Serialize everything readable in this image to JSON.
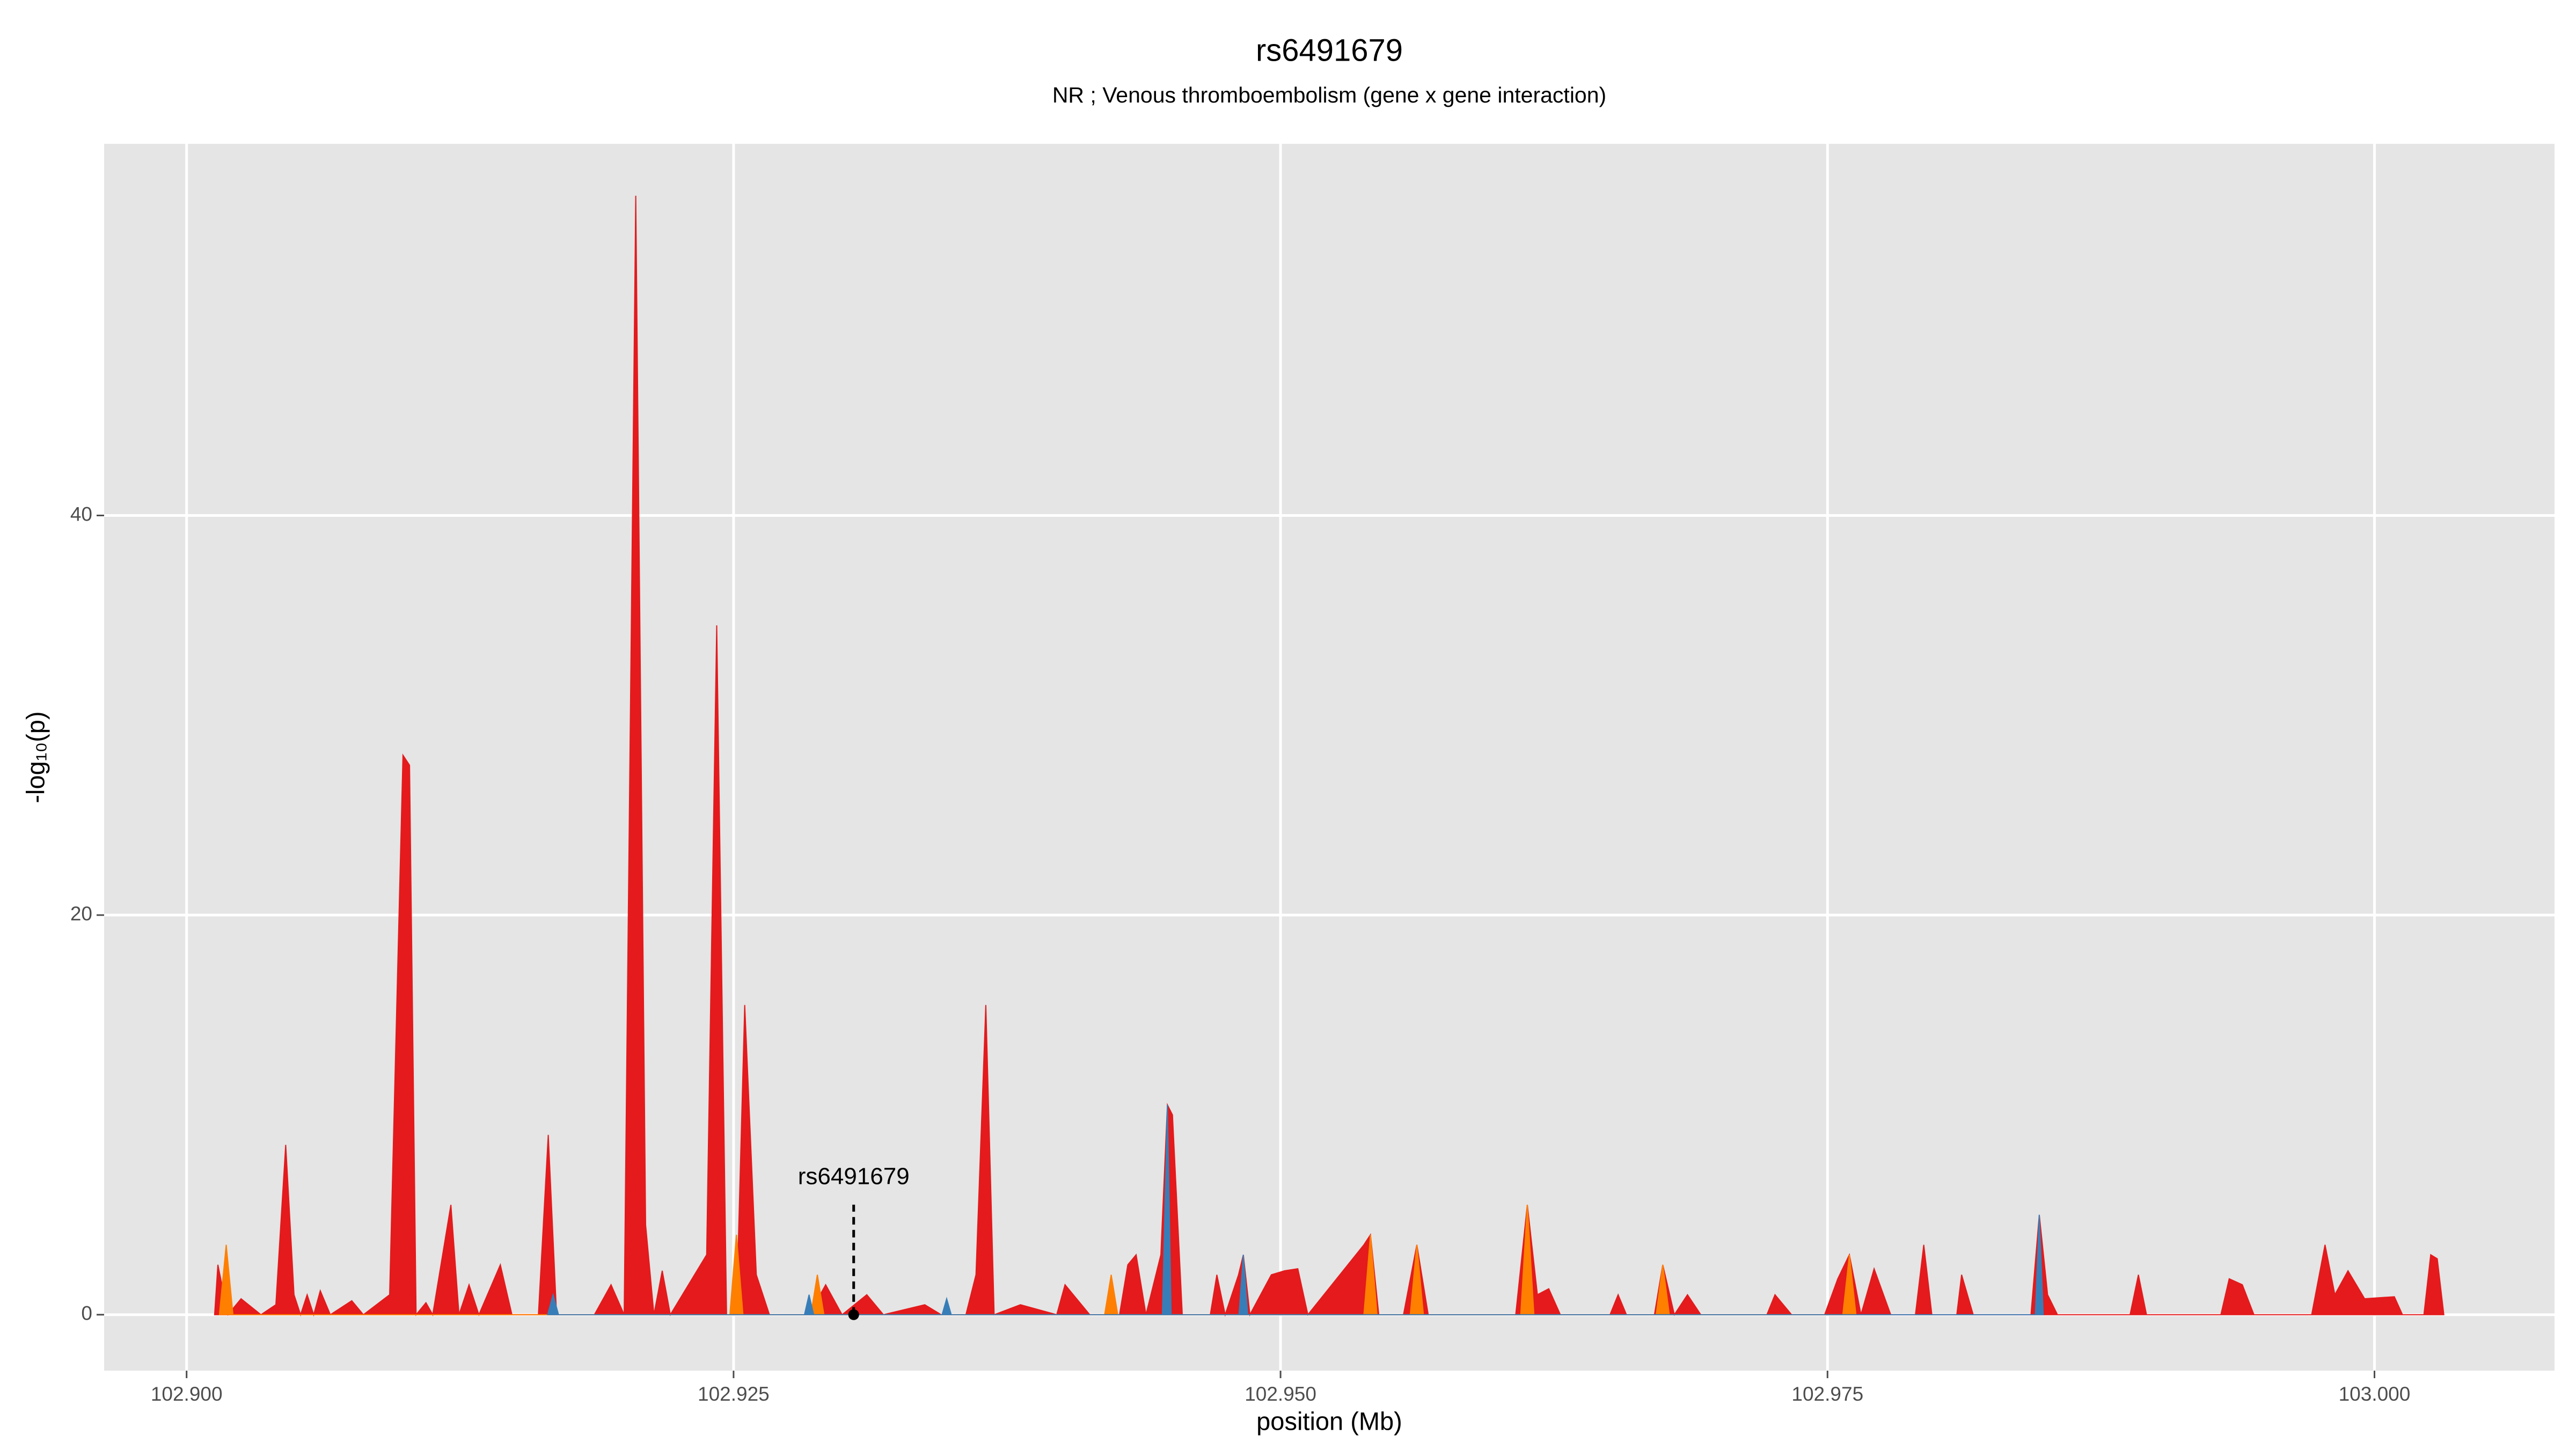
{
  "chart_data": {
    "type": "area",
    "title": "rs6491679",
    "subtitle": "NR ; Venous thromboembolism (gene x gene interaction)",
    "xlabel": "position (Mb)",
    "ylabel": "-log₁₀(p)",
    "xlim": [
      102.89623,
      103.00823
    ],
    "ylim": [
      -2.8,
      58.6
    ],
    "xticks": [
      {
        "value": 102.9,
        "label": "102.900"
      },
      {
        "value": 102.925,
        "label": "102.925"
      },
      {
        "value": 102.95,
        "label": "102.950"
      },
      {
        "value": 102.975,
        "label": "102.975"
      },
      {
        "value": 103.0,
        "label": "103.000"
      }
    ],
    "yticks": [
      0,
      20,
      40
    ],
    "grid": true,
    "series": [
      {
        "color": "#e41a1c",
        "x": [
          102.90128,
          102.90143,
          102.90189,
          102.90249,
          102.9034,
          102.90408,
          102.90453,
          102.90491,
          102.90521,
          102.90551,
          102.90581,
          102.90611,
          102.90657,
          102.90755,
          102.90808,
          102.90928,
          102.90989,
          102.91019,
          102.91049,
          102.91094,
          102.91125,
          102.91208,
          102.91245,
          102.91291,
          102.91336,
          102.91434,
          102.91487,
          102.91608,
          102.91653,
          102.91691,
          102.91864,
          102.9194,
          102.92,
          102.92053,
          102.92098,
          102.92136,
          102.92174,
          102.92211,
          102.92377,
          102.92423,
          102.92468,
          102.92513,
          102.92551,
          102.92604,
          102.92664,
          102.92845,
          102.92921,
          102.92996,
          102.93109,
          102.93185,
          102.93374,
          102.93449,
          102.93562,
          102.93608,
          102.93653,
          102.93691,
          102.93811,
          102.93977,
          102.94015,
          102.94128,
          102.94264,
          102.94302,
          102.9434,
          102.94385,
          102.94453,
          102.94483,
          102.94506,
          102.94551,
          102.94679,
          102.94709,
          102.94747,
          102.94808,
          102.9483,
          102.9486,
          102.94958,
          102.95019,
          102.95079,
          102.95125,
          102.95381,
          102.95411,
          102.95449,
          102.95562,
          102.95623,
          102.95675,
          102.96075,
          102.96128,
          102.96174,
          102.96226,
          102.96279,
          102.96506,
          102.96543,
          102.96581,
          102.96709,
          102.96747,
          102.968,
          102.9686,
          102.96921,
          102.97223,
          102.9726,
          102.97336,
          102.97487,
          102.97547,
          102.976,
          102.97653,
          102.97713,
          102.97789,
          102.97902,
          102.9794,
          102.97977,
          102.98091,
          102.98113,
          102.98166,
          102.9843,
          102.98468,
          102.98506,
          102.98551,
          102.98883,
          102.98921,
          102.98958,
          102.99298,
          102.99336,
          102.99396,
          102.99449,
          102.99713,
          102.99774,
          102.99819,
          102.99879,
          102.99955,
          103.00091,
          103.00128,
          103.00226,
          103.00257,
          103.00287,
          103.00317
        ],
        "values": [
          0,
          2.5,
          0,
          0.8,
          0,
          0.5,
          8.5,
          1,
          0,
          1,
          0,
          1.2,
          0,
          0.7,
          0,
          1,
          28,
          27.5,
          0,
          0.6,
          0,
          5.5,
          0,
          1.5,
          0,
          2.5,
          0,
          0,
          9,
          0,
          0,
          1.5,
          0,
          56,
          4.5,
          0,
          2.2,
          0,
          3,
          34.5,
          0,
          0,
          15.5,
          2,
          0,
          0,
          1.5,
          0,
          1,
          0,
          0.5,
          0,
          0,
          2,
          15.5,
          0,
          0.5,
          0,
          1.5,
          0,
          0,
          2.5,
          3,
          0,
          3,
          10.5,
          10,
          0,
          0,
          2,
          0,
          2,
          3,
          0,
          2,
          2.2,
          2.3,
          0,
          3.5,
          4,
          0,
          0,
          3.5,
          0,
          0,
          5.5,
          1,
          1.3,
          0,
          0,
          1,
          0,
          0,
          2.5,
          0,
          1,
          0,
          0,
          1,
          0,
          0,
          1.8,
          3,
          0,
          2.3,
          0,
          0,
          3.5,
          0,
          0,
          2,
          0,
          0,
          5,
          1,
          0,
          0,
          2,
          0,
          0,
          1.8,
          1.5,
          0,
          0,
          3.5,
          1,
          2.2,
          0.8,
          0.9,
          0,
          0,
          3,
          2.8,
          0
        ]
      },
      {
        "color": "#ff7f00",
        "x": [
          102.9015,
          102.90181,
          102.90212,
          102.92483,
          102.92513,
          102.92543,
          102.92853,
          102.92883,
          102.92913,
          102.94196,
          102.94226,
          102.94256,
          102.95381,
          102.95411,
          102.95441,
          102.95593,
          102.95623,
          102.95653,
          102.96098,
          102.96128,
          102.96158,
          102.96717,
          102.96747,
          102.96777,
          102.9757,
          102.976,
          102.9763
        ],
        "values": [
          0,
          3.5,
          0,
          0,
          4,
          0,
          0,
          2,
          0,
          0,
          2,
          0,
          0,
          4,
          0,
          0,
          3.5,
          0,
          0,
          5.5,
          0,
          0,
          2.5,
          0,
          0,
          3,
          0
        ]
      },
      {
        "color": "#377eb8",
        "x": [
          102.9165,
          102.91675,
          102.917,
          102.92824,
          102.92845,
          102.92866,
          102.93453,
          102.93474,
          102.93495,
          102.9446,
          102.94483,
          102.945,
          102.9481,
          102.9483,
          102.9485,
          102.9845,
          102.98468,
          102.98486
        ],
        "values": [
          0,
          1,
          0,
          0,
          1,
          0,
          0,
          0.8,
          0,
          0,
          10.5,
          0,
          0,
          3,
          0,
          0,
          5,
          0
        ]
      }
    ],
    "annotation": {
      "label": "rs6491679",
      "x": 102.93049,
      "y": 0
    }
  }
}
